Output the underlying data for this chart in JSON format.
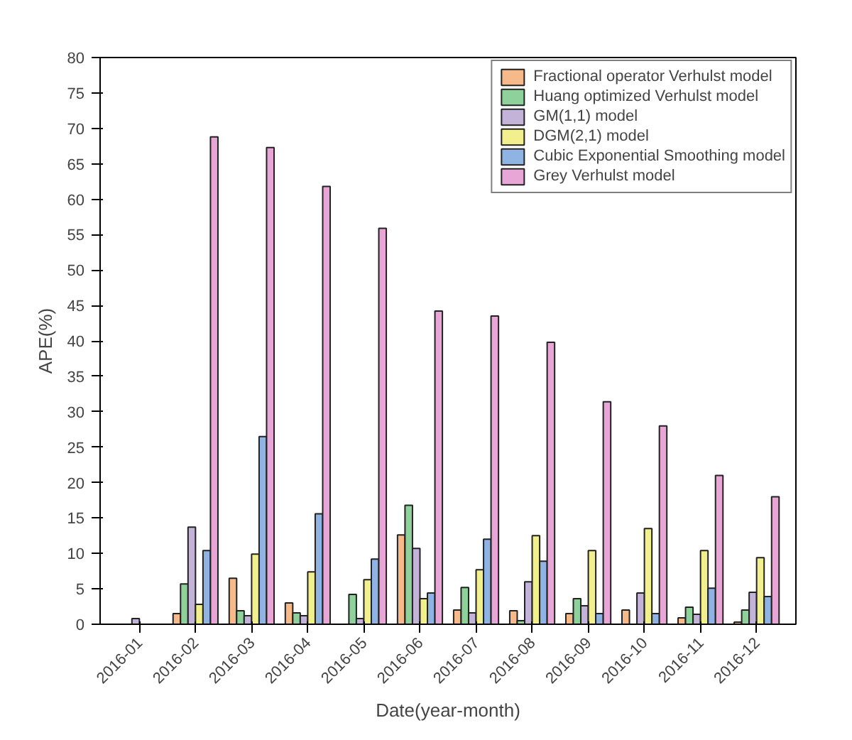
{
  "chart_data": {
    "type": "bar",
    "xlabel": "Date(year-month)",
    "ylabel": "APE(%)",
    "categories": [
      "2016-01",
      "2016-02",
      "2016-03",
      "2016-04",
      "2016-05",
      "2016-06",
      "2016-07",
      "2016-08",
      "2016-09",
      "2016-10",
      "2016-11",
      "2016-12"
    ],
    "ylim": [
      0,
      80
    ],
    "yticks": [
      0,
      5,
      10,
      15,
      20,
      25,
      30,
      35,
      40,
      45,
      50,
      55,
      60,
      65,
      70,
      75,
      80
    ],
    "grid": false,
    "legend": "top right",
    "series": [
      {
        "name": "Fractional operator Verhulst model",
        "color": "#f5b98a",
        "values": [
          null,
          1.5,
          6.5,
          3.0,
          null,
          12.6,
          2.0,
          1.9,
          1.5,
          2.0,
          0.9,
          0.3
        ]
      },
      {
        "name": "Huang optimized Verhulst model",
        "color": "#8fd19b",
        "values": [
          null,
          5.7,
          1.9,
          1.6,
          4.2,
          16.8,
          5.2,
          0.5,
          3.6,
          null,
          2.4,
          2.0
        ]
      },
      {
        "name": "GM(1,1) model",
        "color": "#c3b3d9",
        "values": [
          0.8,
          13.7,
          1.2,
          1.2,
          0.8,
          10.7,
          1.6,
          6.0,
          2.6,
          4.4,
          1.4,
          4.5
        ]
      },
      {
        "name": "DGM(2,1) model",
        "color": "#f2f08c",
        "values": [
          null,
          2.8,
          9.9,
          7.4,
          6.3,
          3.6,
          7.7,
          12.5,
          10.4,
          13.5,
          10.4,
          9.4
        ]
      },
      {
        "name": "Cubic Exponential Smoothing model",
        "color": "#8fb3e3",
        "values": [
          null,
          10.4,
          26.5,
          15.6,
          9.2,
          4.4,
          12.0,
          8.9,
          1.5,
          1.5,
          5.1,
          3.9
        ]
      },
      {
        "name": "Grey Verhulst model",
        "color": "#e7a6d6",
        "values": [
          null,
          68.8,
          67.3,
          61.8,
          55.9,
          44.2,
          43.5,
          39.8,
          31.4,
          28.0,
          21.0,
          18.0
        ]
      }
    ]
  }
}
